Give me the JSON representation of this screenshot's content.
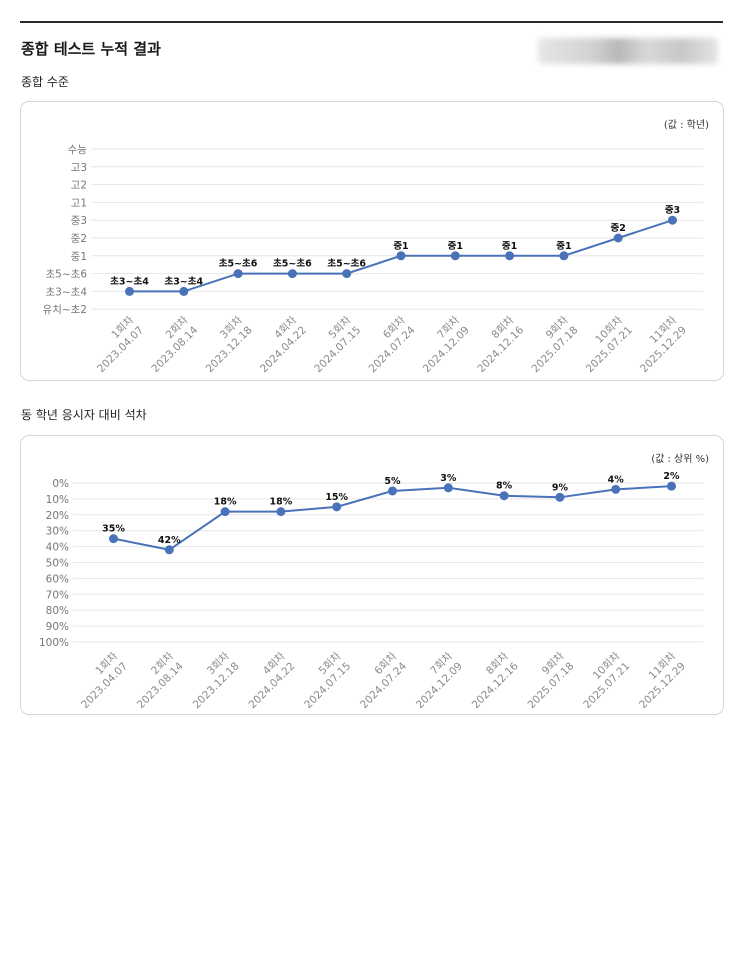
{
  "page_title": "종합 테스트 누적 결과",
  "charts": {
    "level": {
      "section_title": "종합 수준",
      "value_note": "(값 : 학년)"
    },
    "rank": {
      "section_title": "동 학년 응시자 대비 석차",
      "value_note": "(값 : 상위 %)"
    }
  },
  "colors": {
    "line": "#4a72b8",
    "grid": "#e6e6e6",
    "border": "#d4d4d4"
  },
  "chart_data": [
    {
      "type": "line",
      "y_categories": [
        "수능",
        "고3",
        "고2",
        "고1",
        "중3",
        "중2",
        "중1",
        "초5~초6",
        "초3~초4",
        "유치~초2"
      ],
      "x": [
        [
          "1회차",
          "2023.04.07"
        ],
        [
          "2회차",
          "2023.08.14"
        ],
        [
          "3회차",
          "2023.12.18"
        ],
        [
          "4회차",
          "2024.04.22"
        ],
        [
          "5회차",
          "2024.07.15"
        ],
        [
          "6회차",
          "2024.07.24"
        ],
        [
          "7회차",
          "2024.12.09"
        ],
        [
          "8회차",
          "2024.12.16"
        ],
        [
          "9회차",
          "2025.07.18"
        ],
        [
          "10회차",
          "2025.07.21"
        ],
        [
          "11회차",
          "2025.12.29"
        ]
      ],
      "values": [
        "초3~초4",
        "초3~초4",
        "초5~초6",
        "초5~초6",
        "초5~초6",
        "중1",
        "중1",
        "중1",
        "중1",
        "중2",
        "중3"
      ],
      "grid": true
    },
    {
      "type": "line",
      "yticks": [
        "0%",
        "10%",
        "20%",
        "30%",
        "40%",
        "50%",
        "60%",
        "70%",
        "80%",
        "90%",
        "100%"
      ],
      "ylim": [
        0,
        100
      ],
      "y_inverted": true,
      "x": [
        [
          "1회차",
          "2023.04.07"
        ],
        [
          "2회차",
          "2023.08.14"
        ],
        [
          "3회차",
          "2023.12.18"
        ],
        [
          "4회차",
          "2024.04.22"
        ],
        [
          "5회차",
          "2024.07.15"
        ],
        [
          "6회차",
          "2024.07.24"
        ],
        [
          "7회차",
          "2024.12.09"
        ],
        [
          "8회차",
          "2024.12.16"
        ],
        [
          "9회차",
          "2025.07.18"
        ],
        [
          "10회차",
          "2025.07.21"
        ],
        [
          "11회차",
          "2025.12.29"
        ]
      ],
      "values": [
        35,
        42,
        18,
        18,
        15,
        5,
        3,
        8,
        9,
        4,
        2
      ],
      "labels": [
        "35%",
        "42%",
        "18%",
        "18%",
        "15%",
        "5%",
        "3%",
        "8%",
        "9%",
        "4%",
        "2%"
      ],
      "grid": true
    }
  ]
}
